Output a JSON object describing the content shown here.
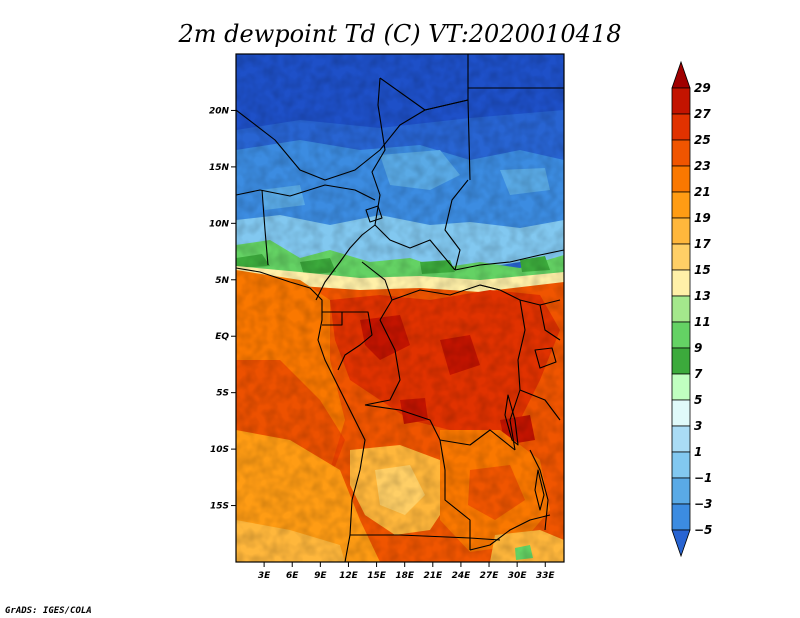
{
  "title": "2m dewpoint Td (C) VT:2020010418",
  "credit": "GrADS: IGES/COLA",
  "map": {
    "lon_range": [
      0,
      35
    ],
    "lat_range": [
      -20,
      25
    ],
    "lat_ticks": [
      {
        "value": 20,
        "label": "20N"
      },
      {
        "value": 15,
        "label": "15N"
      },
      {
        "value": 10,
        "label": "10N"
      },
      {
        "value": 5,
        "label": "5N"
      },
      {
        "value": 0,
        "label": "EQ"
      },
      {
        "value": -5,
        "label": "5S"
      },
      {
        "value": -10,
        "label": "10S"
      },
      {
        "value": -15,
        "label": "15S"
      }
    ],
    "lon_ticks": [
      {
        "value": 3,
        "label": "3E"
      },
      {
        "value": 6,
        "label": "6E"
      },
      {
        "value": 9,
        "label": "9E"
      },
      {
        "value": 12,
        "label": "12E"
      },
      {
        "value": 15,
        "label": "15E"
      },
      {
        "value": 18,
        "label": "18E"
      },
      {
        "value": 21,
        "label": "21E"
      },
      {
        "value": 24,
        "label": "24E"
      },
      {
        "value": 27,
        "label": "27E"
      },
      {
        "value": 30,
        "label": "30E"
      },
      {
        "value": 33,
        "label": "33E"
      }
    ]
  },
  "colorbar": {
    "labels": [
      "29",
      "27",
      "25",
      "23",
      "21",
      "19",
      "17",
      "15",
      "13",
      "11",
      "9",
      "7",
      "5",
      "3",
      "1",
      "−1",
      "−3",
      "−5"
    ],
    "colors": [
      "#a00000",
      "#c31400",
      "#e13200",
      "#f05500",
      "#fa7800",
      "#ff9c14",
      "#ffb73c",
      "#ffcf66",
      "#fff0a8",
      "#a4e88c",
      "#64d264",
      "#3caa3c",
      "#c0ffc0",
      "#e0fafa",
      "#aadcf5",
      "#82c8f0",
      "#5aaae6",
      "#3c8ce1",
      "#2864d2"
    ]
  }
}
